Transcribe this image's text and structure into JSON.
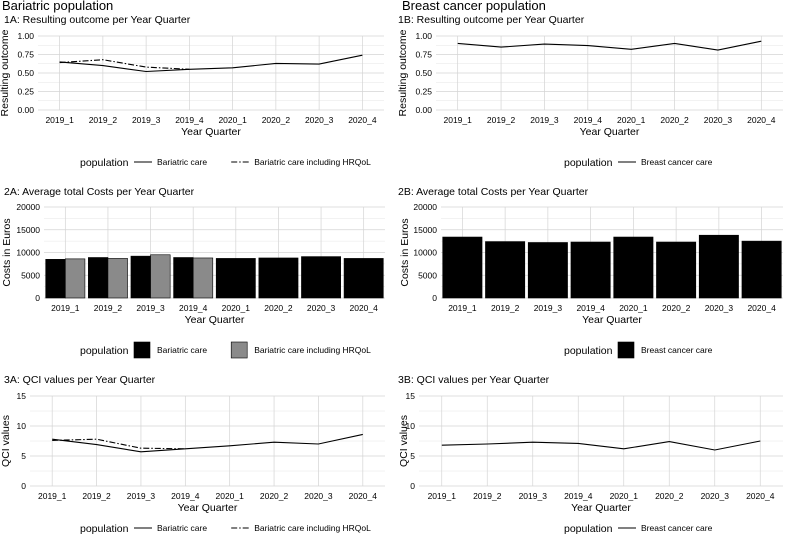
{
  "titles": {
    "left": "Bariatric population",
    "right": "Breast cancer population"
  },
  "chart_data": [
    {
      "id": "1A",
      "type": "line",
      "title": "1A: Resulting outcome per Year Quarter",
      "xlabel": "Year Quarter",
      "ylabel": "Resulting outcome",
      "categories": [
        "2019_1",
        "2019_2",
        "2019_3",
        "2019_4",
        "2020_1",
        "2020_2",
        "2020_3",
        "2020_4"
      ],
      "ylim": [
        0,
        1
      ],
      "yticks": [
        0.0,
        0.25,
        0.5,
        0.75,
        1.0
      ],
      "ytick_labels": [
        "0.00",
        "0.25",
        "0.50",
        "0.75",
        "1.00"
      ],
      "series": [
        {
          "name": "Bariatric care",
          "style": "solid",
          "values": [
            0.65,
            0.6,
            0.52,
            0.55,
            0.57,
            0.63,
            0.62,
            0.74
          ]
        },
        {
          "name": "Bariatric care including HRQoL",
          "style": "dashdot",
          "values": [
            0.64,
            0.68,
            0.58,
            0.55,
            null,
            null,
            null,
            null
          ]
        }
      ],
      "legend": {
        "title": "population",
        "position": "bottom"
      }
    },
    {
      "id": "1B",
      "type": "line",
      "title": "1B: Resulting outcome per Year Quarter",
      "xlabel": "Year Quarter",
      "ylabel": "Resulting outcome",
      "categories": [
        "2019_1",
        "2019_2",
        "2019_3",
        "2019_4",
        "2020_1",
        "2020_2",
        "2020_3",
        "2020_4"
      ],
      "ylim": [
        0,
        1
      ],
      "yticks": [
        0.0,
        0.25,
        0.5,
        0.75,
        1.0
      ],
      "ytick_labels": [
        "0.00",
        "0.25",
        "0.50",
        "0.75",
        "1.00"
      ],
      "series": [
        {
          "name": "Breast cancer care",
          "style": "solid",
          "values": [
            0.9,
            0.85,
            0.89,
            0.87,
            0.82,
            0.9,
            0.81,
            0.93
          ]
        }
      ],
      "legend": {
        "title": "population",
        "position": "bottom"
      }
    },
    {
      "id": "2A",
      "type": "bar",
      "title": "2A: Average total Costs per Year Quarter",
      "xlabel": "Year Quarter",
      "ylabel": "Costs in Euros",
      "categories": [
        "2019_1",
        "2019_2",
        "2019_3",
        "2019_4",
        "2020_1",
        "2020_2",
        "2020_3",
        "2020_4"
      ],
      "ylim": [
        0,
        20000
      ],
      "yticks": [
        0,
        5000,
        10000,
        15000,
        20000
      ],
      "ytick_labels": [
        "0",
        "5000",
        "10000",
        "15000",
        "20000"
      ],
      "series": [
        {
          "name": "Bariatric care",
          "color": "#000000",
          "values": [
            8500,
            8900,
            9200,
            8900,
            8700,
            8800,
            9100,
            8700
          ]
        },
        {
          "name": "Bariatric care including HRQoL",
          "color": "#8a8a8a",
          "values": [
            8600,
            8700,
            9500,
            8800,
            null,
            null,
            null,
            null
          ]
        }
      ],
      "legend": {
        "title": "population",
        "position": "bottom"
      }
    },
    {
      "id": "2B",
      "type": "bar",
      "title": "2B: Average total Costs per Year Quarter",
      "xlabel": "Year Quarter",
      "ylabel": "Costs in Euros",
      "categories": [
        "2019_1",
        "2019_2",
        "2019_3",
        "2019_4",
        "2020_1",
        "2020_2",
        "2020_3",
        "2020_4"
      ],
      "ylim": [
        0,
        20000
      ],
      "yticks": [
        0,
        5000,
        10000,
        15000,
        20000
      ],
      "ytick_labels": [
        "0",
        "5000",
        "10000",
        "15000",
        "20000"
      ],
      "series": [
        {
          "name": "Breast cancer care",
          "color": "#000000",
          "values": [
            13400,
            12400,
            12200,
            12300,
            13400,
            12300,
            13800,
            12500
          ]
        }
      ],
      "legend": {
        "title": "population",
        "position": "bottom"
      }
    },
    {
      "id": "3A",
      "type": "line",
      "title": "3A: QCI values per Year Quarter",
      "xlabel": "Year Quarter",
      "ylabel": "QCI values",
      "categories": [
        "2019_1",
        "2019_2",
        "2019_3",
        "2019_4",
        "2020_1",
        "2020_2",
        "2020_3",
        "2020_4"
      ],
      "ylim": [
        0,
        15
      ],
      "yticks": [
        0,
        5,
        10,
        15
      ],
      "ytick_labels": [
        "0",
        "5",
        "10",
        "15"
      ],
      "series": [
        {
          "name": "Bariatric care",
          "style": "solid",
          "values": [
            7.8,
            6.9,
            5.7,
            6.2,
            6.7,
            7.3,
            7.0,
            8.6
          ]
        },
        {
          "name": "Bariatric care including HRQoL",
          "style": "dashdot",
          "values": [
            7.6,
            7.8,
            6.3,
            6.2,
            null,
            null,
            null,
            null
          ]
        }
      ],
      "legend": {
        "title": "population",
        "position": "bottom"
      }
    },
    {
      "id": "3B",
      "type": "line",
      "title": "3B: QCI values per Year Quarter",
      "xlabel": "Year Quarter",
      "ylabel": "QCI values",
      "categories": [
        "2019_1",
        "2019_2",
        "2019_3",
        "2019_4",
        "2020_1",
        "2020_2",
        "2020_3",
        "2020_4"
      ],
      "ylim": [
        0,
        15
      ],
      "yticks": [
        0,
        5,
        10,
        15
      ],
      "ytick_labels": [
        "0",
        "5",
        "10",
        "15"
      ],
      "series": [
        {
          "name": "Breast cancer care",
          "style": "solid",
          "values": [
            6.8,
            7.0,
            7.3,
            7.1,
            6.2,
            7.4,
            6.0,
            7.5
          ]
        }
      ],
      "legend": {
        "title": "population",
        "position": "bottom"
      }
    }
  ]
}
